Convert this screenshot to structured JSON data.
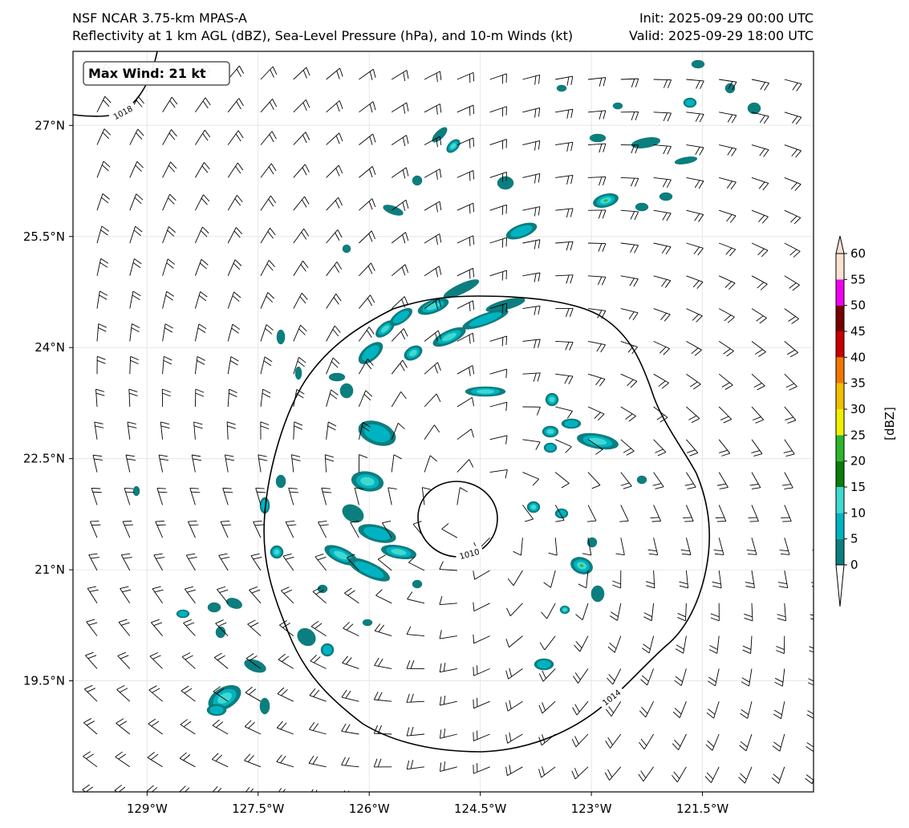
{
  "header": {
    "left_line1": "NSF NCAR 3.75-km MPAS-A",
    "left_line2": "Reflectivity at 1 km AGL (dBZ), Sea-Level Pressure (hPa), and 10-m Winds (kt)",
    "right_line1": "Init: 2025-09-29 00:00 UTC",
    "right_line2": "Valid: 2025-09-29 18:00 UTC"
  },
  "map": {
    "lon_range": [
      -130.0,
      -120.0
    ],
    "lat_range": [
      18.0,
      28.0
    ],
    "lon_ticks": [
      -129,
      -127.5,
      -126,
      -124.5,
      -123,
      -121.5
    ],
    "lon_tick_labels": [
      "129°W",
      "127.5°W",
      "126°W",
      "124.5°W",
      "123°W",
      "121.5°W"
    ],
    "lat_ticks": [
      19.5,
      21,
      22.5,
      24,
      25.5,
      27
    ],
    "lat_tick_labels": [
      "19.5°N",
      "21°N",
      "22.5°N",
      "24°N",
      "25.5°N",
      "27°N"
    ],
    "gridlines": true,
    "cyclone_center": {
      "lon": -124.5,
      "lat": 21.7
    },
    "max_wind_label": "Max Wind: 21 kt",
    "pressure_contours": [
      {
        "value": 1010,
        "label": "1010"
      },
      {
        "value": 1014,
        "label": "1014"
      },
      {
        "value": 1018,
        "label": "1018"
      }
    ],
    "colors": {
      "contour": "#000000",
      "barb": "#000000",
      "grid": "#e6e6e6"
    }
  },
  "colorbar": {
    "label": "[dBZ]",
    "ticks": [
      0,
      5,
      10,
      15,
      20,
      25,
      30,
      35,
      40,
      45,
      50,
      55,
      60
    ],
    "tick_labels": [
      "0",
      "5",
      "10",
      "15",
      "20",
      "25",
      "30",
      "35",
      "40",
      "45",
      "50",
      "55",
      "60"
    ],
    "colors": [
      "#ffffff",
      "#0b7f7f",
      "#00b3c2",
      "#40d9d0",
      "#0a7d0a",
      "#2db52d",
      "#f0f000",
      "#f0c000",
      "#f07800",
      "#c80000",
      "#780000",
      "#f000f0",
      "#fde2d2"
    ],
    "extend": "both"
  }
}
